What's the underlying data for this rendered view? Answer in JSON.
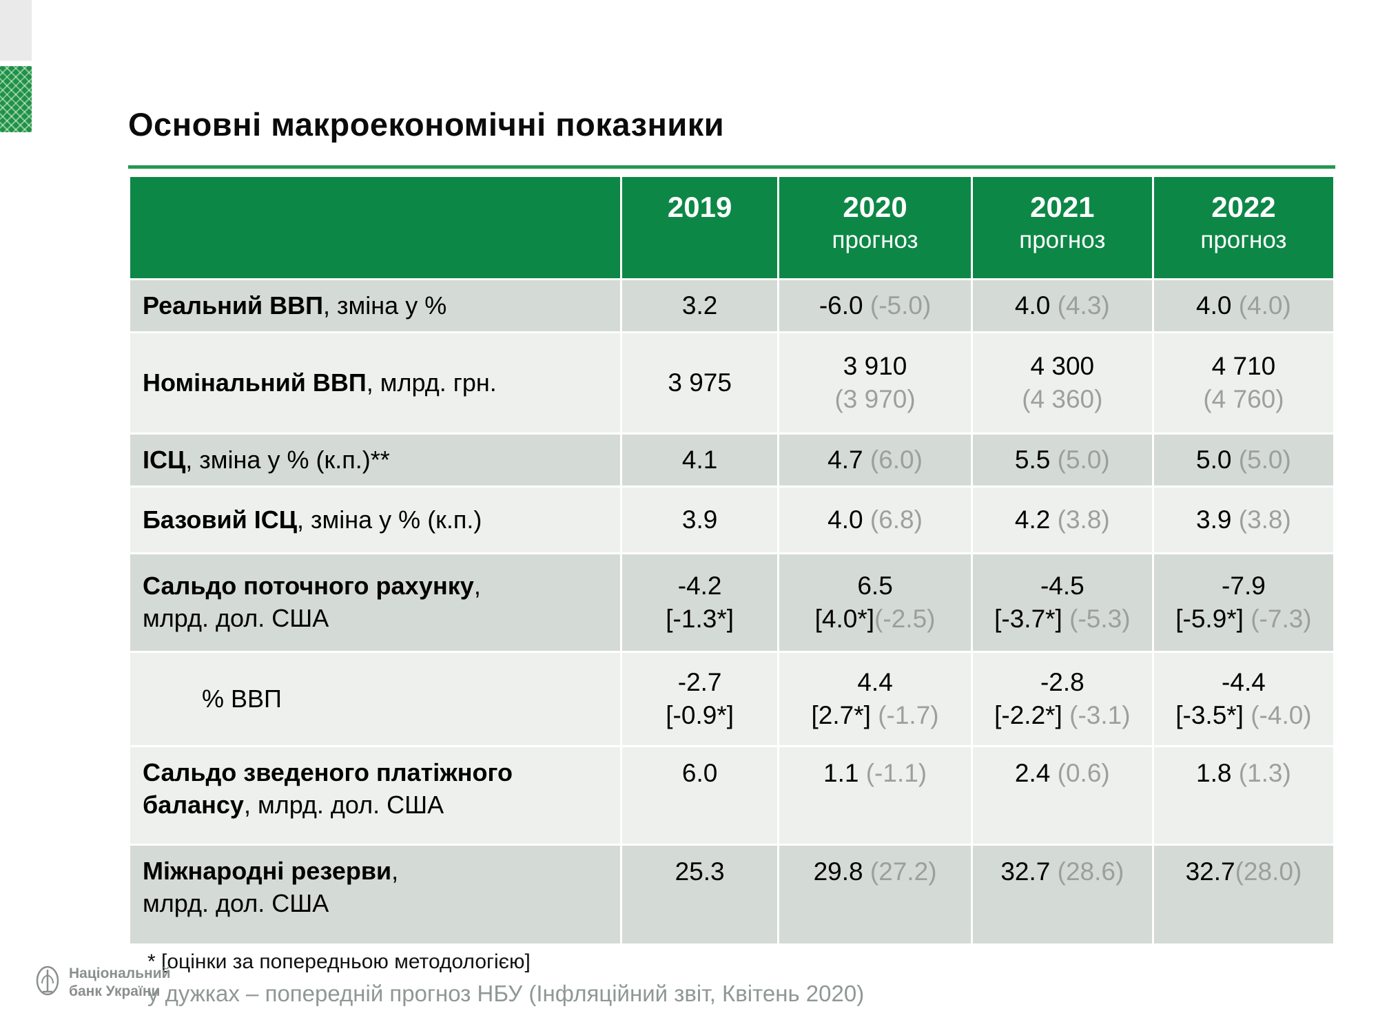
{
  "page": {
    "title": "Основні макроекономічні показники",
    "footnote1": "* [оцінки за попередньою методологією]",
    "footnote2": "у дужках – попередній прогноз НБУ (Інфляційний звіт, Квітень 2020)",
    "logo": {
      "line1": "Національний",
      "line2": "банк України"
    }
  },
  "colors": {
    "header_green": "#0d8746",
    "accent_line": "#27984f",
    "row_dark": "#d4dad5",
    "row_light": "#edf0ed",
    "gray_text": "#9c9f9d",
    "footnote_gray": "#8f9894",
    "logo_gray": "#8a8f8c",
    "pattern_green": "#1f9245"
  },
  "table": {
    "columns": [
      {
        "year": "2019",
        "sub": ""
      },
      {
        "year": "2020",
        "sub": "прогноз"
      },
      {
        "year": "2021",
        "sub": "прогноз"
      },
      {
        "year": "2022",
        "sub": "прогноз"
      }
    ],
    "rows": [
      {
        "name": "real-gdp",
        "shade": "dark",
        "valign": "middle",
        "indent": false,
        "label": [
          [
            {
              "t": "Реальний ВВП",
              "b": true
            },
            {
              "t": ", зміна у %"
            }
          ]
        ],
        "cells": [
          [
            [
              {
                "t": "3.2"
              }
            ]
          ],
          [
            [
              {
                "t": "-6.0 "
              },
              {
                "t": "(-5.0)",
                "g": true
              }
            ]
          ],
          [
            [
              {
                "t": "4.0 "
              },
              {
                "t": "(4.3)",
                "g": true
              }
            ]
          ],
          [
            [
              {
                "t": "4.0 "
              },
              {
                "t": "(4.0)",
                "g": true
              }
            ]
          ]
        ]
      },
      {
        "name": "nominal-gdp",
        "shade": "light",
        "valign": "middle",
        "indent": false,
        "label": [
          [
            {
              "t": "Номінальний ВВП",
              "b": true
            },
            {
              "t": ", млрд. грн."
            }
          ]
        ],
        "cells": [
          [
            [
              {
                "t": "3 975"
              }
            ]
          ],
          [
            [
              {
                "t": "3 910"
              }
            ],
            [
              {
                "t": "(3 970)",
                "g": true
              }
            ]
          ],
          [
            [
              {
                "t": "4 300"
              }
            ],
            [
              {
                "t": "(4 360)",
                "g": true
              }
            ]
          ],
          [
            [
              {
                "t": "4 710"
              }
            ],
            [
              {
                "t": "(4 760)",
                "g": true
              }
            ]
          ]
        ]
      },
      {
        "name": "cpi",
        "shade": "dark",
        "valign": "middle",
        "indent": false,
        "label": [
          [
            {
              "t": "ІСЦ",
              "b": true
            },
            {
              "t": ", зміна у % (к.п.)**"
            }
          ]
        ],
        "cells": [
          [
            [
              {
                "t": "4.1"
              }
            ]
          ],
          [
            [
              {
                "t": "4.7 "
              },
              {
                "t": "(6.0)",
                "g": true
              }
            ]
          ],
          [
            [
              {
                "t": "5.5 "
              },
              {
                "t": "(5.0)",
                "g": true
              }
            ]
          ],
          [
            [
              {
                "t": "5.0 "
              },
              {
                "t": "(5.0)",
                "g": true
              }
            ]
          ]
        ]
      },
      {
        "name": "core-cpi",
        "shade": "light",
        "valign": "middle",
        "indent": false,
        "label": [
          [
            {
              "t": "Базовий ІСЦ",
              "b": true
            },
            {
              "t": ", зміна у % (к.п.)"
            }
          ]
        ],
        "cells": [
          [
            [
              {
                "t": "3.9"
              }
            ]
          ],
          [
            [
              {
                "t": "4.0 "
              },
              {
                "t": "(6.8)",
                "g": true
              }
            ]
          ],
          [
            [
              {
                "t": "4.2 "
              },
              {
                "t": "(3.8)",
                "g": true
              }
            ]
          ],
          [
            [
              {
                "t": "3.9 "
              },
              {
                "t": "(3.8)",
                "g": true
              }
            ]
          ]
        ]
      },
      {
        "name": "current-account",
        "shade": "dark",
        "valign": "middle",
        "indent": false,
        "label": [
          [
            {
              "t": "Сальдо поточного рахунку",
              "b": true
            },
            {
              "t": ","
            }
          ],
          [
            {
              "t": "млрд. дол. США"
            }
          ]
        ],
        "cells": [
          [
            [
              {
                "t": "-4.2"
              }
            ],
            [
              {
                "t": "[-1.3*]"
              }
            ]
          ],
          [
            [
              {
                "t": "6.5"
              }
            ],
            [
              {
                "t": "[4.0*]"
              },
              {
                "t": "(-2.5)",
                "g": true
              }
            ]
          ],
          [
            [
              {
                "t": "-4.5"
              }
            ],
            [
              {
                "t": "[-3.7*] "
              },
              {
                "t": "(-5.3)",
                "g": true
              }
            ]
          ],
          [
            [
              {
                "t": "-7.9"
              }
            ],
            [
              {
                "t": "[-5.9*] "
              },
              {
                "t": "(-7.3)",
                "g": true
              }
            ]
          ]
        ]
      },
      {
        "name": "current-account-pct-gdp",
        "shade": "light",
        "valign": "middle",
        "indent": true,
        "label": [
          [
            {
              "t": "% ВВП"
            }
          ]
        ],
        "cells": [
          [
            [
              {
                "t": "-2.7"
              }
            ],
            [
              {
                "t": "[-0.9*]"
              }
            ]
          ],
          [
            [
              {
                "t": "4.4"
              }
            ],
            [
              {
                "t": "[2.7*] "
              },
              {
                "t": "(-1.7)",
                "g": true
              }
            ]
          ],
          [
            [
              {
                "t": "-2.8"
              }
            ],
            [
              {
                "t": "[-2.2*] "
              },
              {
                "t": "(-3.1)",
                "g": true
              }
            ]
          ],
          [
            [
              {
                "t": "-4.4"
              }
            ],
            [
              {
                "t": "[-3.5*] "
              },
              {
                "t": "(-4.0)",
                "g": true
              }
            ]
          ]
        ]
      },
      {
        "name": "consolidated-bop",
        "shade": "light",
        "valign": "top",
        "indent": false,
        "label": [
          [
            {
              "t": "Сальдо зведеного платіжного",
              "b": true
            }
          ],
          [
            {
              "t": "балансу",
              "b": true
            },
            {
              "t": ", млрд. дол. США"
            }
          ]
        ],
        "cells": [
          [
            [
              {
                "t": "6.0"
              }
            ]
          ],
          [
            [
              {
                "t": "1.1 "
              },
              {
                "t": "(-1.1)",
                "g": true
              }
            ]
          ],
          [
            [
              {
                "t": "2.4 "
              },
              {
                "t": "(0.6)",
                "g": true
              }
            ]
          ],
          [
            [
              {
                "t": "1.8 "
              },
              {
                "t": "(1.3)",
                "g": true
              }
            ]
          ]
        ]
      },
      {
        "name": "international-reserves",
        "shade": "dark",
        "valign": "top",
        "indent": false,
        "label": [
          [
            {
              "t": "Міжнародні резерви",
              "b": true
            },
            {
              "t": ","
            }
          ],
          [
            {
              "t": "млрд. дол. США"
            }
          ]
        ],
        "cells": [
          [
            [
              {
                "t": "25.3"
              }
            ]
          ],
          [
            [
              {
                "t": "29.8 "
              },
              {
                "t": "(27.2)",
                "g": true
              }
            ]
          ],
          [
            [
              {
                "t": "32.7 "
              },
              {
                "t": "(28.6)",
                "g": true
              }
            ]
          ],
          [
            [
              {
                "t": "32.7"
              },
              {
                "t": "(28.0)",
                "g": true
              }
            ]
          ]
        ]
      }
    ]
  }
}
